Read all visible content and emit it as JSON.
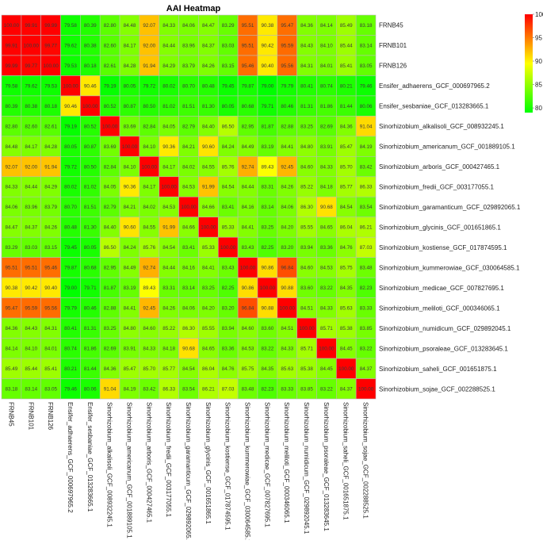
{
  "chart_data": {
    "type": "heatmap",
    "title": "AAI Heatmap",
    "labels": [
      "FRNB45",
      "FRNB101",
      "FRNB126",
      "Ensifer_adhaerens_GCF_000697965.2",
      "Ensifer_sesbaniae_GCF_013283665.1",
      "Sinorhizobium_alkalisoli_GCF_008932245.1",
      "Sinorhizobium_americanum_GCF_001889105.1",
      "Sinorhizobium_arboris_GCF_000427465.1",
      "Sinorhizobium_fredii_GCF_003177055.1",
      "Sinorhizobium_garamanticum_GCF_029892065.1",
      "Sinorhizobium_glycinis_GCF_001651865.1",
      "Sinorhizobium_kostiense_GCF_017874595.1",
      "Sinorhizobium_kummerowiae_GCF_030064585.1",
      "Sinorhizobium_medicae_GCF_007827695.1",
      "Sinorhizobium_meliloti_GCF_000346065.1",
      "Sinorhizobium_numidicum_GCF_029892045.1",
      "Sinorhizobium_psoraleae_GCF_013283645.1",
      "Sinorhizobium_saheli_GCF_001651875.1",
      "Sinorhizobium_sojae_GCF_002288525.1"
    ],
    "values": [
      [
        100.0,
        99.91,
        99.99,
        79.58,
        80.39,
        82.8,
        84.48,
        92.07,
        84.33,
        84.06,
        84.47,
        83.29,
        95.51,
        90.38,
        95.47,
        84.36,
        84.14,
        85.49,
        83.18
      ],
      [
        99.91,
        100.0,
        99.77,
        79.62,
        80.38,
        82.6,
        84.17,
        92.0,
        84.44,
        83.96,
        84.37,
        83.03,
        95.51,
        90.42,
        95.59,
        84.43,
        84.1,
        85.44,
        83.14
      ],
      [
        99.99,
        99.77,
        100.0,
        79.53,
        80.18,
        82.61,
        84.28,
        91.94,
        84.29,
        83.79,
        84.26,
        83.15,
        95.46,
        90.4,
        95.56,
        84.31,
        84.01,
        85.41,
        83.05
      ],
      [
        79.58,
        79.62,
        79.53,
        100.0,
        90.46,
        79.19,
        80.05,
        79.72,
        80.02,
        80.7,
        80.48,
        79.45,
        79.87,
        79.0,
        79.79,
        80.41,
        80.74,
        80.21,
        79.46
      ],
      [
        80.39,
        80.38,
        80.18,
        90.46,
        100.0,
        80.52,
        80.87,
        80.5,
        81.02,
        81.51,
        81.3,
        80.05,
        80.68,
        79.71,
        80.46,
        81.31,
        81.86,
        81.44,
        80.06
      ],
      [
        82.8,
        82.6,
        82.61,
        79.19,
        80.52,
        100.0,
        83.69,
        82.84,
        84.05,
        82.79,
        84.4,
        86.5,
        82.95,
        81.87,
        82.88,
        83.25,
        82.69,
        84.36,
        91.04
      ],
      [
        84.48,
        84.17,
        84.28,
        80.05,
        80.87,
        83.69,
        100.0,
        84.1,
        90.36,
        84.21,
        90.6,
        84.24,
        84.49,
        83.19,
        84.41,
        84.8,
        83.91,
        85.47,
        84.19
      ],
      [
        92.07,
        92.0,
        91.94,
        79.72,
        80.5,
        82.84,
        84.1,
        100.0,
        84.17,
        84.02,
        84.55,
        85.76,
        92.74,
        89.43,
        92.45,
        84.6,
        84.33,
        85.7,
        83.42
      ],
      [
        84.33,
        84.44,
        84.29,
        80.02,
        81.02,
        84.05,
        90.36,
        84.17,
        100.0,
        84.53,
        91.99,
        84.54,
        84.44,
        83.31,
        84.26,
        85.22,
        84.18,
        85.77,
        86.33
      ],
      [
        84.06,
        83.96,
        83.79,
        80.7,
        81.51,
        82.79,
        84.21,
        84.02,
        84.53,
        100.0,
        84.66,
        83.41,
        84.16,
        83.14,
        84.06,
        86.3,
        90.68,
        84.54,
        83.54
      ],
      [
        84.47,
        84.37,
        84.26,
        80.48,
        81.3,
        84.4,
        90.6,
        84.55,
        91.99,
        84.66,
        100.0,
        85.33,
        84.41,
        83.25,
        84.2,
        85.55,
        84.65,
        86.04,
        86.21
      ],
      [
        83.29,
        83.03,
        83.15,
        79.45,
        80.05,
        86.5,
        84.24,
        85.76,
        84.54,
        83.41,
        85.33,
        100.0,
        83.43,
        82.25,
        83.2,
        83.94,
        83.36,
        84.76,
        87.03
      ],
      [
        95.51,
        95.51,
        95.46,
        79.87,
        80.68,
        82.95,
        84.49,
        92.74,
        84.44,
        84.16,
        84.41,
        83.43,
        100.0,
        90.86,
        96.84,
        84.6,
        84.53,
        85.75,
        83.48
      ],
      [
        90.38,
        90.42,
        90.4,
        79.0,
        79.71,
        81.87,
        83.19,
        89.43,
        83.31,
        83.14,
        83.25,
        82.25,
        90.86,
        100.0,
        90.88,
        83.6,
        83.22,
        84.35,
        82.23
      ],
      [
        95.47,
        95.59,
        95.56,
        79.79,
        80.46,
        82.88,
        84.41,
        92.45,
        84.26,
        84.06,
        84.2,
        83.2,
        96.84,
        90.88,
        100.0,
        84.51,
        84.33,
        85.63,
        83.33
      ],
      [
        84.36,
        84.43,
        84.31,
        80.41,
        81.31,
        83.25,
        84.8,
        84.6,
        85.22,
        86.3,
        85.55,
        83.94,
        84.6,
        83.6,
        84.51,
        100.0,
        85.71,
        85.38,
        83.85
      ],
      [
        84.14,
        84.1,
        84.01,
        80.74,
        81.86,
        82.69,
        83.91,
        84.33,
        84.18,
        90.68,
        84.65,
        83.36,
        84.53,
        83.22,
        84.33,
        85.71,
        100.0,
        84.45,
        83.22
      ],
      [
        85.49,
        85.44,
        85.41,
        80.21,
        81.44,
        84.36,
        85.47,
        85.7,
        85.77,
        84.54,
        86.04,
        84.76,
        85.75,
        84.35,
        85.63,
        85.38,
        84.45,
        100.0,
        84.37
      ],
      [
        83.18,
        83.14,
        83.05,
        79.46,
        80.06,
        91.04,
        84.19,
        83.42,
        86.33,
        83.54,
        86.21,
        87.03,
        83.48,
        82.23,
        83.33,
        83.85,
        83.22,
        84.37,
        100.0
      ]
    ],
    "color_scale": {
      "min": 79,
      "max": 100,
      "stops": [
        {
          "value": 79,
          "color": "#00ff00"
        },
        {
          "value": 89.5,
          "color": "#ffff00"
        },
        {
          "value": 100,
          "color": "#ff0000"
        }
      ],
      "legend_ticks": [
        100,
        95,
        90,
        85,
        80
      ],
      "legend_placement": "top-right"
    },
    "cell_border_color": "#b9b9b9",
    "value_precision": 2
  }
}
